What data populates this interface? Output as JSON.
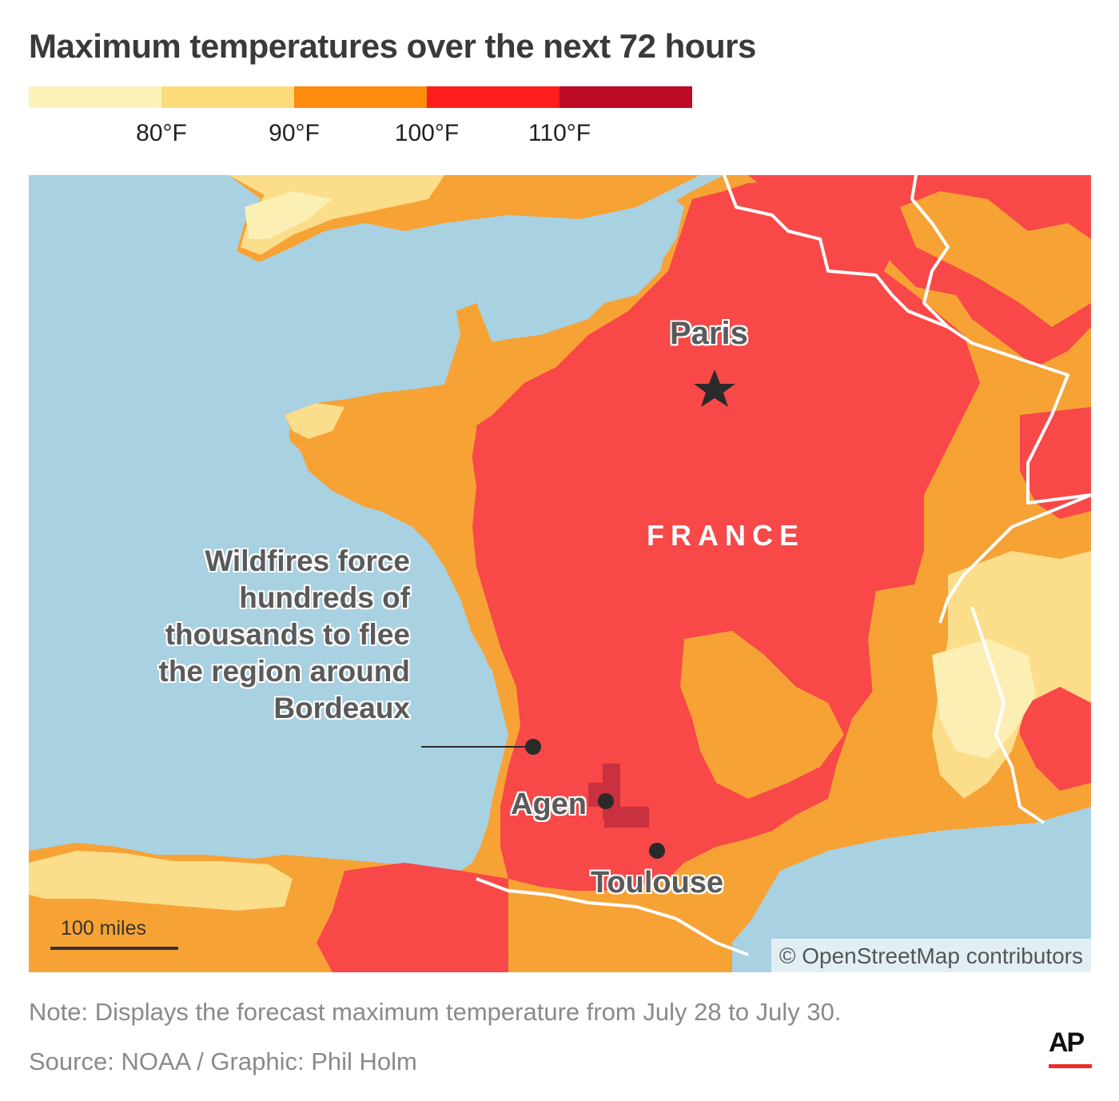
{
  "title": "Maximum temperatures over the next 72 hours",
  "legend": {
    "colors": [
      "#fbf3b9",
      "#fcdc7a",
      "#fd8b0d",
      "#fe1e1e",
      "#bd0a26"
    ],
    "ticks": [
      "80°F",
      "90°F",
      "100°F",
      "110°F"
    ]
  },
  "map": {
    "country_label": "FRANCE",
    "cities": [
      {
        "name": "Paris",
        "marker": "star-icon"
      },
      {
        "name": "Agen",
        "marker": "dot"
      },
      {
        "name": "Toulouse",
        "marker": "dot"
      }
    ],
    "annotation": "Wildfires force hundreds of thousands to flee the region around Bordeaux",
    "scale_label": "100 miles",
    "attribution": "© OpenStreetMap contributors",
    "palette": {
      "water": "#a8d1e2",
      "light": "#fbefb4",
      "yellow": "#fbdd8a",
      "orange": "#f7a235",
      "red": "#f84848",
      "dark_red": "#c93040"
    }
  },
  "note": "Note: Displays the forecast maximum temperature from July 28 to July 30.",
  "source": "Source: NOAA / Graphic: Phil Holm",
  "logo": "AP"
}
